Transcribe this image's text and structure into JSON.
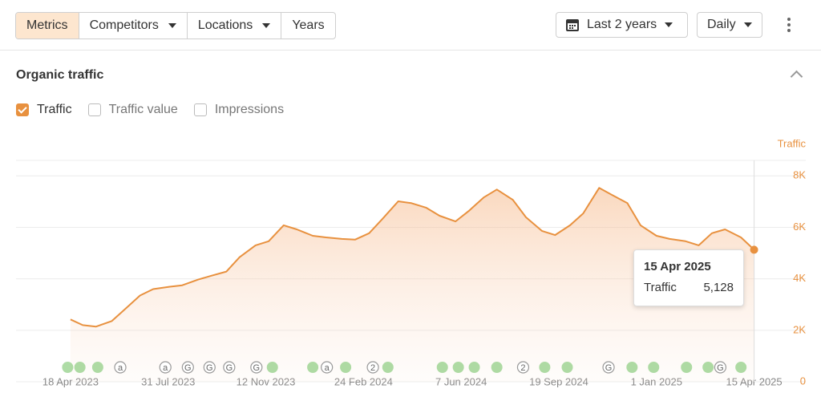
{
  "toolbar": {
    "tabs": [
      {
        "label": "Metrics",
        "dropdown": false
      },
      {
        "label": "Competitors",
        "dropdown": true
      },
      {
        "label": "Locations",
        "dropdown": true
      },
      {
        "label": "Years",
        "dropdown": false
      }
    ],
    "active_tab": 0,
    "range": "Last 2 years",
    "interval": "Daily"
  },
  "section": {
    "title": "Organic traffic",
    "checkboxes": [
      {
        "label": "Traffic",
        "checked": true
      },
      {
        "label": "Traffic value",
        "checked": false
      },
      {
        "label": "Impressions",
        "checked": false
      }
    ]
  },
  "chart_data": {
    "type": "line",
    "ylabel": "Traffic",
    "grid": true,
    "x": [
      "2023-04-18",
      "2023-05-01",
      "2023-05-15",
      "2023-06-01",
      "2023-06-15",
      "2023-07-01",
      "2023-07-15",
      "2023-08-01",
      "2023-08-15",
      "2023-09-01",
      "2023-09-15",
      "2023-10-01",
      "2023-10-15",
      "2023-11-01",
      "2023-11-15",
      "2023-12-01",
      "2023-12-15",
      "2024-01-01",
      "2024-01-15",
      "2024-02-01",
      "2024-02-15",
      "2024-03-01",
      "2024-03-15",
      "2024-04-01",
      "2024-04-15",
      "2024-05-01",
      "2024-05-15",
      "2024-06-01",
      "2024-06-15",
      "2024-07-01",
      "2024-07-15",
      "2024-08-01",
      "2024-08-15",
      "2024-09-01",
      "2024-09-15",
      "2024-10-01",
      "2024-10-15",
      "2024-11-01",
      "2024-11-15",
      "2024-12-01",
      "2024-12-15",
      "2025-01-01",
      "2025-01-15",
      "2025-02-01",
      "2025-02-15",
      "2025-03-01",
      "2025-03-15",
      "2025-04-01",
      "2025-04-15"
    ],
    "series": [
      {
        "name": "Traffic",
        "color": "#e8913f",
        "values": [
          2420,
          2200,
          2140,
          2360,
          2820,
          3350,
          3600,
          3690,
          3750,
          3970,
          4120,
          4280,
          4840,
          5300,
          5460,
          6080,
          5920,
          5670,
          5610,
          5550,
          5520,
          5770,
          6320,
          7010,
          6940,
          6760,
          6450,
          6230,
          6630,
          7160,
          7470,
          7070,
          6390,
          5860,
          5700,
          6080,
          6540,
          7530,
          7250,
          6940,
          6080,
          5670,
          5550,
          5460,
          5300,
          5770,
          5920,
          5610,
          5128
        ]
      }
    ],
    "xlim": [
      "2023-02-19",
      "2025-06-09"
    ],
    "xticks": [
      {
        "value": "2023-04-18",
        "label": "18 Apr 2023"
      },
      {
        "value": "2023-07-31",
        "label": "31 Jul 2023"
      },
      {
        "value": "2023-11-12",
        "label": "12 Nov 2023"
      },
      {
        "value": "2024-02-24",
        "label": "24 Feb 2024"
      },
      {
        "value": "2024-06-07",
        "label": "7 Jun 2024"
      },
      {
        "value": "2024-09-19",
        "label": "19 Sep 2024"
      },
      {
        "value": "2025-01-01",
        "label": "1 Jan 2025"
      },
      {
        "value": "2025-04-15",
        "label": "15 Apr 2025"
      }
    ],
    "ylim": [
      0,
      8600
    ],
    "yticks": [
      0,
      {
        "value": 2000,
        "label": "2K"
      },
      {
        "value": 4000,
        "label": "4K"
      },
      {
        "value": 6000,
        "label": "6K"
      },
      {
        "value": 8000,
        "label": "8K"
      }
    ],
    "events": [
      {
        "date": "2023-04-15"
      },
      {
        "date": "2023-04-28"
      },
      {
        "date": "2023-05-17"
      },
      {
        "date": "2023-06-10",
        "label": "a"
      },
      {
        "date": "2023-07-28",
        "label": "a"
      },
      {
        "date": "2023-08-21",
        "label": "G"
      },
      {
        "date": "2023-09-13",
        "label": "G"
      },
      {
        "date": "2023-10-04",
        "label": "G"
      },
      {
        "date": "2023-11-02",
        "label": "G"
      },
      {
        "date": "2023-11-19"
      },
      {
        "date": "2024-01-01"
      },
      {
        "date": "2024-01-16",
        "label": "a"
      },
      {
        "date": "2024-02-05"
      },
      {
        "date": "2024-03-05",
        "label": "2"
      },
      {
        "date": "2024-03-21"
      },
      {
        "date": "2024-05-18"
      },
      {
        "date": "2024-06-04"
      },
      {
        "date": "2024-06-21"
      },
      {
        "date": "2024-07-15"
      },
      {
        "date": "2024-08-12",
        "label": "2"
      },
      {
        "date": "2024-09-04"
      },
      {
        "date": "2024-09-28"
      },
      {
        "date": "2024-11-11",
        "label": "G"
      },
      {
        "date": "2024-12-06"
      },
      {
        "date": "2024-12-29"
      },
      {
        "date": "2025-02-02"
      },
      {
        "date": "2025-02-25"
      },
      {
        "date": "2025-03-10",
        "label": "G"
      },
      {
        "date": "2025-04-01"
      }
    ],
    "tooltip": {
      "date": "15 Apr 2025",
      "label": "Traffic",
      "value": "5,128"
    }
  }
}
